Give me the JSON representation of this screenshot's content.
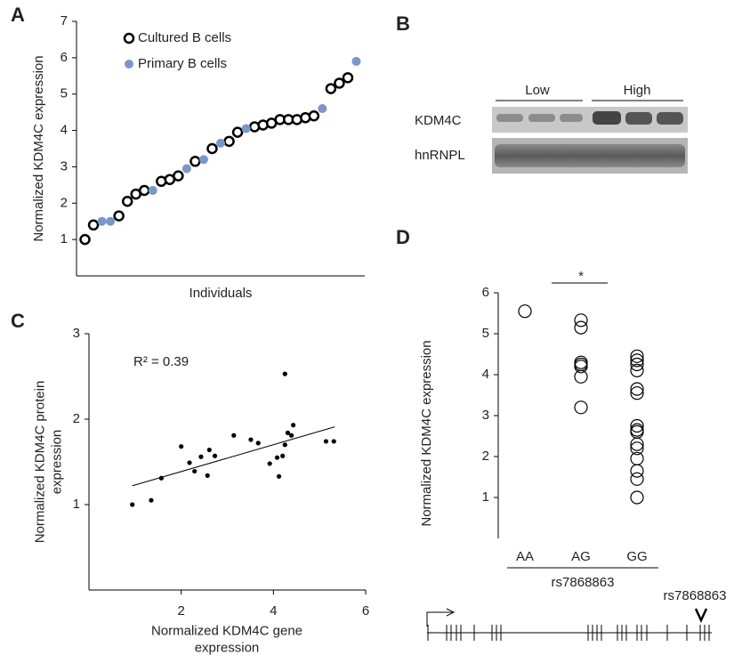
{
  "chart_data": [
    {
      "panel": "A",
      "type": "scatter",
      "ylabel": "Normalized KDM4C expression",
      "xlabel": "Individuals",
      "xlim": [
        0,
        34
      ],
      "ylim": [
        0,
        7
      ],
      "yticks": [
        1,
        2,
        3,
        4,
        5,
        6,
        7
      ],
      "legend": "top-left",
      "series": [
        {
          "name": "Cultured B cells",
          "color": "#000000",
          "marker": "open",
          "x": [
            1,
            2,
            5,
            6,
            7,
            8,
            10,
            11,
            12,
            14,
            16,
            18,
            19,
            21,
            22,
            23,
            24,
            25,
            26,
            27,
            28,
            30,
            31,
            32
          ],
          "values": [
            1.0,
            1.4,
            1.65,
            2.05,
            2.25,
            2.35,
            2.6,
            2.65,
            2.75,
            3.15,
            3.5,
            3.7,
            3.95,
            4.1,
            4.15,
            4.2,
            4.3,
            4.3,
            4.3,
            4.35,
            4.4,
            5.15,
            5.3,
            5.45
          ]
        },
        {
          "name": "Primary B cells",
          "color": "#7b96c8",
          "marker": "filled",
          "x": [
            3,
            4,
            9,
            13,
            15,
            17,
            20,
            29,
            33
          ],
          "values": [
            1.5,
            1.5,
            2.35,
            2.95,
            3.2,
            3.65,
            4.05,
            4.6,
            5.9
          ]
        }
      ]
    },
    {
      "panel": "C",
      "type": "scatter",
      "ylabel": [
        "Normalized KDM4C protein",
        "expression"
      ],
      "xlabel": [
        "Normalized KDM4C gene",
        "expression"
      ],
      "annotation": "R² = 0.39",
      "xlim": [
        0,
        6
      ],
      "xticks": [
        2,
        4,
        6
      ],
      "ylim": [
        0,
        3
      ],
      "yticks": [
        1,
        2,
        3
      ],
      "series": [
        {
          "color": "#000000",
          "marker": "filled",
          "x": [
            0.94,
            1.35,
            1.57,
            2.0,
            2.18,
            2.29,
            2.43,
            2.57,
            2.61,
            2.73,
            3.14,
            3.51,
            3.67,
            3.92,
            4.08,
            4.12,
            4.2,
            4.25,
            4.25,
            4.31,
            4.39,
            4.43,
            5.14,
            5.31
          ],
          "values": [
            1.0,
            1.05,
            1.31,
            1.68,
            1.49,
            1.39,
            1.56,
            1.34,
            1.64,
            1.57,
            1.81,
            1.76,
            1.72,
            1.48,
            1.55,
            1.33,
            1.57,
            2.53,
            1.7,
            1.84,
            1.81,
            1.93,
            1.74,
            1.74
          ]
        }
      ],
      "trendline": {
        "x": [
          0.94,
          5.33
        ],
        "y": [
          1.22,
          1.91
        ]
      }
    },
    {
      "panel": "D",
      "type": "strip",
      "ylabel": "Normalized KDM4C expression",
      "xlabel": "rs7868863",
      "significance": "*",
      "ylim": [
        0,
        6
      ],
      "yticks": [
        1,
        2,
        3,
        4,
        5,
        6
      ],
      "categories": [
        "AA",
        "AG",
        "GG"
      ],
      "values": [
        [
          5.55
        ],
        [
          5.33,
          5.15,
          4.3,
          4.25,
          4.2,
          3.95,
          3.2
        ],
        [
          4.45,
          4.35,
          4.25,
          4.1,
          3.65,
          3.55,
          2.75,
          2.65,
          2.6,
          2.3,
          2.2,
          1.95,
          1.65,
          1.45,
          1.0
        ]
      ]
    }
  ],
  "blot": {
    "panel": "B",
    "groups": [
      "Low",
      "High"
    ],
    "rows": [
      "KDM4C",
      "hnRNPL"
    ]
  },
  "gene_diagram": {
    "label": "rs7868863"
  }
}
